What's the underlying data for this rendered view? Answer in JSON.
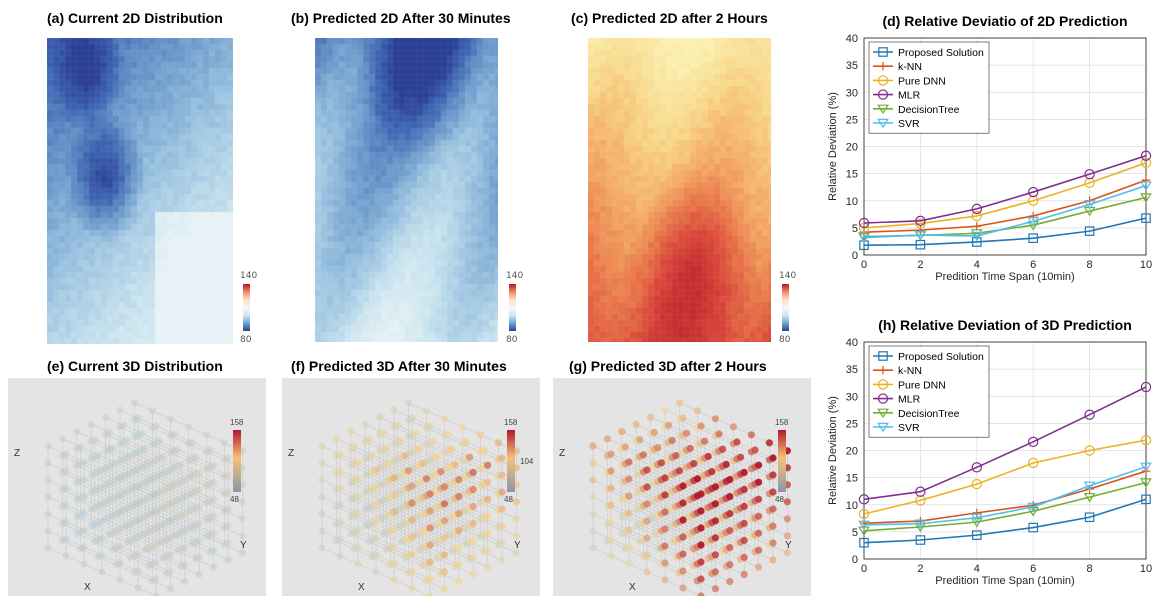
{
  "colors": {
    "blue_scale": [
      "#2b3f95",
      "#3f67b3",
      "#6e9bcc",
      "#9fc6e2",
      "#cbe4ef",
      "#e6f2f6"
    ],
    "warm_scale": [
      "#fbf1b3",
      "#f8d98c",
      "#f4ad68",
      "#ea7a4b",
      "#d9473a",
      "#c12a2f"
    ],
    "cube_bg": "#e4e4e4",
    "cube_dot_low": "#a9c7dc",
    "cube_dot_high": "#b2182b"
  },
  "maps2d": {
    "panels": [
      {
        "title": "(a) Current 2D Distribution"
      },
      {
        "title": "(b) Predicted 2D After 30 Minutes"
      },
      {
        "title": "(c) Predicted 2D after 2 Hours"
      }
    ],
    "colorbar": {
      "max": "140",
      "min": "80"
    }
  },
  "cubes3d": {
    "panels": [
      {
        "title": "(e) Current 3D Distribution",
        "cbar_max": "158",
        "cbar_mid": "",
        "cbar_min": "48"
      },
      {
        "title": "(f) Predicted 3D After 30 Minutes",
        "cbar_max": "158",
        "cbar_mid": "104",
        "cbar_min": "48"
      },
      {
        "title": "(g) Predicted 3D after 2 Hours",
        "cbar_max": "158",
        "cbar_mid": "",
        "cbar_min": "48"
      }
    ],
    "axis_labels": {
      "z": "Z",
      "y": "Y",
      "x": "X"
    }
  },
  "chart_data": [
    {
      "type": "line",
      "title": "(d) Relative Deviatio of 2D Prediction",
      "xlabel": "Predition Time Span (10min)",
      "ylabel": "Relative Deviation  (%)",
      "x": [
        0,
        2,
        4,
        6,
        8,
        10
      ],
      "xlim": [
        0,
        10
      ],
      "ylim": [
        0,
        40
      ],
      "yticks": [
        0,
        5,
        10,
        15,
        20,
        25,
        30,
        35,
        40
      ],
      "xticks": [
        0,
        2,
        4,
        6,
        8,
        10
      ],
      "grid": true,
      "legend": "top-left",
      "series": [
        {
          "name": "Proposed Solution",
          "color": "#1f77b4",
          "marker": "square",
          "values": [
            1.8,
            1.9,
            2.4,
            3.1,
            4.4,
            6.8
          ]
        },
        {
          "name": "k-NN",
          "color": "#d95319",
          "marker": "plus",
          "values": [
            4.2,
            4.6,
            5.3,
            7.2,
            10.0,
            13.8
          ]
        },
        {
          "name": "Pure DNN",
          "color": "#edb120",
          "marker": "circle",
          "values": [
            5.0,
            5.8,
            7.2,
            10.0,
            13.3,
            17.0
          ]
        },
        {
          "name": "MLR",
          "color": "#7e2f8e",
          "marker": "circle",
          "values": [
            5.9,
            6.3,
            8.5,
            11.6,
            14.9,
            18.3
          ]
        },
        {
          "name": "DecisionTree",
          "color": "#77ac30",
          "marker": "triangle-down",
          "values": [
            3.4,
            3.6,
            4.0,
            5.5,
            8.1,
            10.6
          ]
        },
        {
          "name": "SVR",
          "color": "#4dbeee",
          "marker": "triangle-down",
          "values": [
            3.2,
            3.7,
            3.5,
            6.2,
            9.3,
            12.8
          ]
        }
      ]
    },
    {
      "type": "line",
      "title": "(h) Relative Deviation of 3D Prediction",
      "xlabel": "Predition Time Span (10min)",
      "ylabel": "Relative Deviation  (%)",
      "x": [
        0,
        2,
        4,
        6,
        8,
        10
      ],
      "xlim": [
        0,
        10
      ],
      "ylim": [
        0,
        40
      ],
      "yticks": [
        0,
        5,
        10,
        15,
        20,
        25,
        30,
        35,
        40
      ],
      "xticks": [
        0,
        2,
        4,
        6,
        8,
        10
      ],
      "grid": true,
      "legend": "top-left",
      "series": [
        {
          "name": "Proposed Solution",
          "color": "#1f77b4",
          "marker": "square",
          "values": [
            3.0,
            3.5,
            4.4,
            5.8,
            7.7,
            11.0
          ]
        },
        {
          "name": "k-NN",
          "color": "#d95319",
          "marker": "plus",
          "values": [
            6.6,
            7.0,
            8.5,
            9.9,
            12.9,
            16.2
          ]
        },
        {
          "name": "Pure DNN",
          "color": "#edb120",
          "marker": "circle",
          "values": [
            8.3,
            10.8,
            13.8,
            17.7,
            20.0,
            21.9
          ]
        },
        {
          "name": "MLR",
          "color": "#7e2f8e",
          "marker": "circle",
          "values": [
            11.0,
            12.4,
            16.9,
            21.6,
            26.6,
            31.7
          ]
        },
        {
          "name": "DecisionTree",
          "color": "#77ac30",
          "marker": "triangle-down",
          "values": [
            5.2,
            5.9,
            6.8,
            8.8,
            11.4,
            14.1
          ]
        },
        {
          "name": "SVR",
          "color": "#4dbeee",
          "marker": "triangle-down",
          "values": [
            6.3,
            6.5,
            7.6,
            9.6,
            13.5,
            17.0
          ]
        }
      ]
    }
  ]
}
